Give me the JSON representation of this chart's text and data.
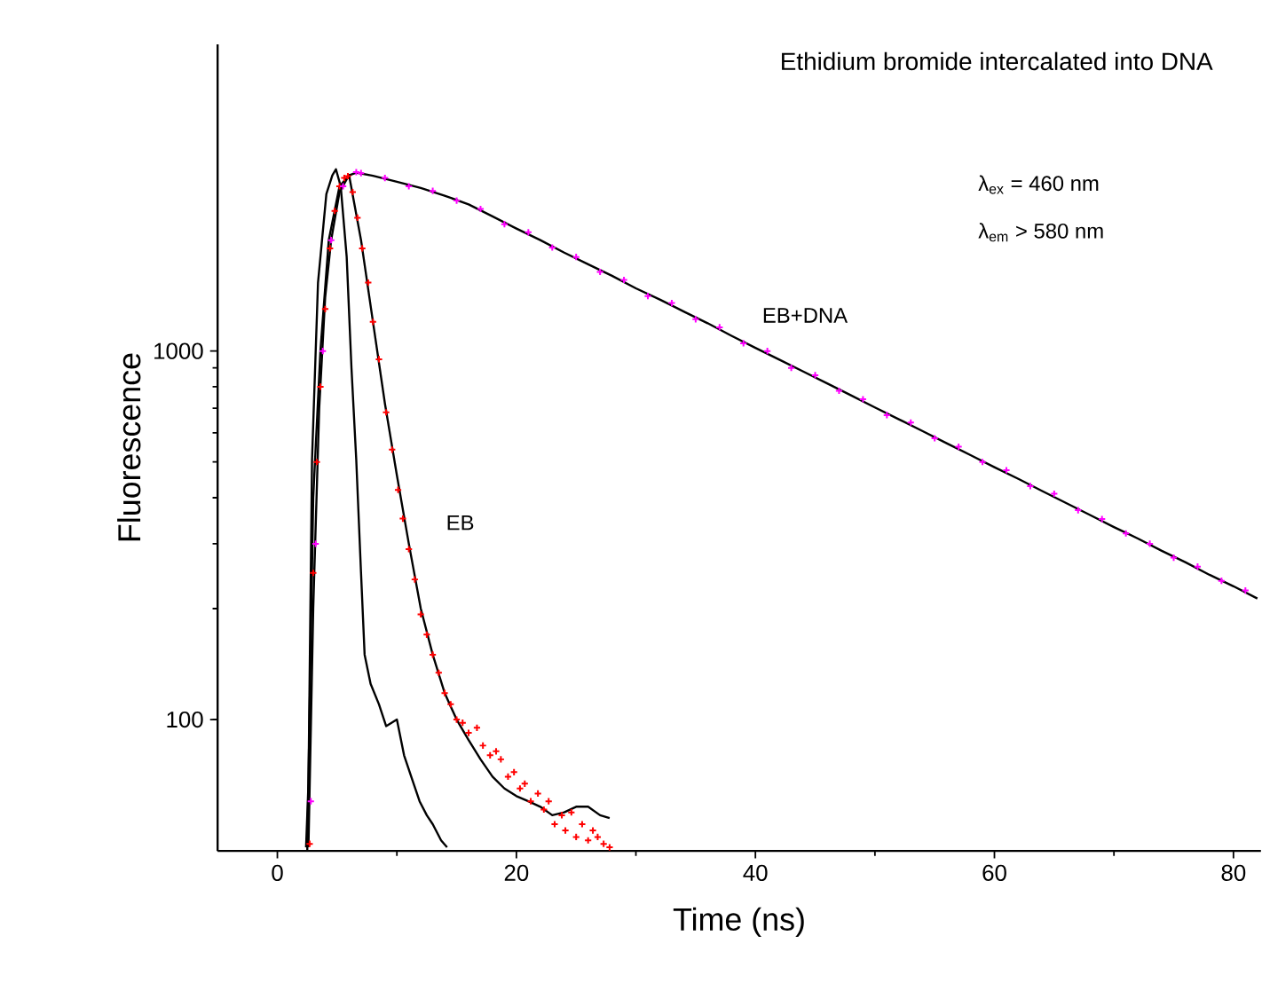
{
  "chart_data": {
    "type": "scatter",
    "title": "Ethidium bromide intercalated into DNA",
    "xlabel": "Time (ns)",
    "ylabel": "Fluorescence",
    "log": "y",
    "xlim": [
      -5,
      82.3
    ],
    "ylim": [
      44,
      6800
    ],
    "xticks": [
      0,
      20,
      40,
      60,
      80
    ],
    "yticks": [
      100,
      1000
    ],
    "marker": "cross",
    "grid": false,
    "series": [
      {
        "type": "line",
        "marker": "none",
        "color": "#000000",
        "x": [
          2.4,
          2.6,
          2.9,
          3.4,
          4.1,
          4.6,
          4.9,
          5.3,
          5.8,
          6.2,
          6.6,
          7.0,
          7.3,
          7.8,
          8.5,
          9.1,
          10.0,
          10.6,
          11.2,
          11.9,
          12.5,
          13.0,
          13.7,
          14.2
        ],
        "values": [
          45,
          67,
          507,
          1534,
          2670,
          3000,
          3115,
          2800,
          1800,
          900,
          507,
          250,
          150,
          125,
          110,
          96,
          100,
          80,
          70,
          60,
          55,
          52,
          47,
          45
        ]
      },
      {
        "color": "#ff0000",
        "x": [
          2.7,
          3.0,
          3.3,
          3.6,
          4.0,
          4.4,
          4.8,
          5.2,
          5.6,
          5.9,
          6.3,
          6.7,
          7.1,
          7.6,
          8.0,
          8.5,
          9.1,
          9.6,
          10.1,
          10.5,
          11.0,
          11.5,
          12.0,
          12.5,
          13.0,
          13.5,
          14.0,
          14.5,
          15.0,
          15.5,
          16.0,
          16.7,
          17.2,
          17.8,
          18.3,
          18.7,
          19.3,
          19.8,
          20.3,
          20.7,
          21.2,
          21.8,
          22.3,
          22.7,
          23.2,
          23.8,
          24.1,
          24.6,
          25.0,
          25.5,
          26.0,
          26.4,
          26.8,
          27.3,
          27.8
        ],
        "values": [
          46,
          250,
          500,
          800,
          1300,
          1900,
          2400,
          2800,
          2950,
          2984,
          2700,
          2300,
          1900,
          1534,
          1200,
          950,
          682,
          540,
          420,
          351,
          290,
          240,
          193,
          170,
          150,
          134,
          118,
          110,
          100,
          98,
          92,
          95,
          85,
          80,
          82,
          78,
          70,
          72,
          65,
          67,
          60,
          63,
          57,
          60,
          52,
          55,
          50,
          56,
          48,
          52,
          47,
          50,
          48,
          46,
          45
        ]
      },
      {
        "type": "line",
        "marker": "none",
        "color": "#000000",
        "x": [
          2.5,
          3.0,
          3.6,
          4.3,
          5.2,
          6.0,
          7.0,
          8.0,
          9.0,
          10,
          11,
          12,
          13,
          14,
          15,
          16,
          17,
          18,
          19,
          20,
          21,
          22,
          23,
          24,
          25,
          26,
          27,
          27.8
        ],
        "values": [
          44,
          400,
          1000,
          2000,
          2800,
          3000,
          2000,
          1200,
          720,
          460,
          300,
          200,
          150,
          118,
          100,
          88,
          78,
          70,
          65,
          62,
          60,
          58,
          55,
          56,
          58,
          58,
          55,
          54
        ]
      },
      {
        "color": "#ff00ff",
        "x": [
          2.8,
          3.2,
          3.8,
          4.5,
          5.5,
          6.6,
          7,
          9,
          11,
          13,
          15,
          17,
          19,
          21,
          23,
          25,
          27,
          29,
          31,
          33,
          35,
          37,
          39,
          41,
          43,
          45,
          47,
          49,
          51,
          53,
          55,
          57,
          59,
          61,
          63,
          65,
          67,
          69,
          71,
          73,
          75,
          77,
          79,
          81
        ],
        "values": [
          60,
          300,
          1000,
          2000,
          2800,
          3060,
          3040,
          2950,
          2800,
          2720,
          2560,
          2430,
          2210,
          2100,
          1910,
          1800,
          1640,
          1560,
          1410,
          1350,
          1220,
          1160,
          1050,
          1000,
          900,
          860,
          780,
          740,
          670,
          640,
          580,
          550,
          500,
          475,
          430,
          410,
          370,
          350,
          320,
          300,
          275,
          260,
          238,
          224
        ]
      },
      {
        "type": "line",
        "marker": "none",
        "color": "#000000",
        "x": [
          2.6,
          3.0,
          3.5,
          4.0,
          4.5,
          5.2,
          6.0,
          6.6,
          8,
          10,
          12,
          14,
          16,
          18,
          20,
          22,
          24,
          26,
          28,
          30,
          32,
          34,
          36,
          38,
          40,
          42,
          44,
          46,
          48,
          50,
          52,
          54,
          56,
          58,
          60,
          62,
          64,
          66,
          68,
          70,
          72,
          74,
          76,
          78,
          80,
          82
        ],
        "values": [
          45,
          200,
          700,
          1400,
          2000,
          2700,
          3000,
          3050,
          2990,
          2880,
          2770,
          2640,
          2500,
          2320,
          2150,
          2000,
          1850,
          1720,
          1600,
          1480,
          1380,
          1280,
          1190,
          1100,
          1020,
          948,
          880,
          817,
          758,
          703,
          653,
          606,
          562,
          522,
          484,
          450,
          417,
          387,
          359,
          333,
          310,
          287,
          267,
          247,
          230,
          213
        ]
      }
    ],
    "annotations": [
      "EB",
      "EB+DNA",
      "λ$_{ex}$ = 460 nm",
      "λ$_{em}$ > 580 nm"
    ]
  }
}
